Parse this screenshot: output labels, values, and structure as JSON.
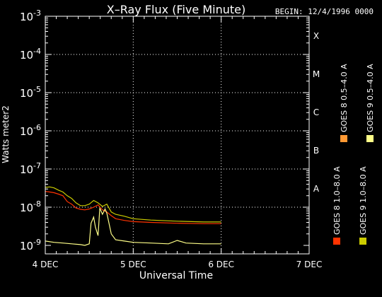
{
  "chart_data": {
    "type": "line",
    "title": "X–Ray Flux (Five Minute)",
    "begin_label": "BEGIN: 12/4/1996 0000",
    "xlabel": "Universal Time",
    "ylabel": "Watts meter2",
    "x_unit": "day",
    "xlim": [
      "1996-12-04",
      "1996-12-07"
    ],
    "x_tick_labels": [
      "4 DEC",
      "5 DEC",
      "6 DEC",
      "7 DEC"
    ],
    "yscale": "log",
    "ylim": [
      6e-10,
      0.001
    ],
    "y_ticks": [
      {
        "base": "10",
        "exp": "-9"
      },
      {
        "base": "10",
        "exp": "-8"
      },
      {
        "base": "10",
        "exp": "-7"
      },
      {
        "base": "10",
        "exp": "-6"
      },
      {
        "base": "10",
        "exp": "-5"
      },
      {
        "base": "10",
        "exp": "-4"
      },
      {
        "base": "10",
        "exp": "-3"
      }
    ],
    "flare_classes": [
      {
        "label": "A",
        "value": 1e-08
      },
      {
        "label": "B",
        "value": 1e-07
      },
      {
        "label": "C",
        "value": 1e-06
      },
      {
        "label": "M",
        "value": 1e-05
      },
      {
        "label": "X",
        "value": 0.0001
      }
    ],
    "grid": "dotted",
    "legend_position": "right, vertical",
    "legend": [
      {
        "label": "GOES 8  1.0–8.0 A",
        "color": "#ff3300"
      },
      {
        "label": "GOES 8  0.5–4.0 A",
        "color": "#ff9933"
      },
      {
        "label": "GOES 9  1.0–8.0 A",
        "color": "#cccc00"
      },
      {
        "label": "GOES 9  0.5–4.0 A",
        "color": "#ffff88"
      }
    ],
    "series": [
      {
        "name": "GOES 8  1.0–8.0 A",
        "color": "#ff3300",
        "x": [
          0,
          0.05,
          0.1,
          0.15,
          0.2,
          0.25,
          0.3,
          0.35,
          0.4,
          0.45,
          0.5,
          0.55,
          0.6,
          0.65,
          0.7,
          0.75,
          0.8,
          0.9,
          1.0,
          1.2,
          1.5,
          1.8,
          2.0
        ],
        "y": [
          2.6e-08,
          2.5e-08,
          2.4e-08,
          2.2e-08,
          2e-08,
          1.4e-08,
          1.2e-08,
          9.5e-09,
          8.8e-09,
          8.5e-09,
          9e-09,
          1e-08,
          1.15e-08,
          8.5e-09,
          7.5e-09,
          6e-09,
          5e-09,
          4.5e-09,
          4.2e-09,
          4e-09,
          3.8e-09,
          3.7e-09,
          3.7e-09
        ]
      },
      {
        "name": "GOES 9  1.0–8.0 A",
        "color": "#cccc00",
        "x": [
          0,
          0.05,
          0.1,
          0.15,
          0.2,
          0.25,
          0.3,
          0.35,
          0.4,
          0.45,
          0.5,
          0.55,
          0.6,
          0.65,
          0.7,
          0.75,
          0.8,
          0.9,
          1.0,
          1.2,
          1.5,
          1.8,
          2.0
        ],
        "y": [
          3.3e-08,
          3.4e-08,
          3.2e-08,
          2.8e-08,
          2.5e-08,
          2e-08,
          1.7e-08,
          1.3e-08,
          1.1e-08,
          1.1e-08,
          1.2e-08,
          1.5e-08,
          1.3e-08,
          1.05e-08,
          1.2e-08,
          7.5e-09,
          6.5e-09,
          5.8e-09,
          5e-09,
          4.6e-09,
          4.3e-09,
          4.1e-09,
          4.1e-09
        ]
      },
      {
        "name": "GOES 9  0.5–4.0 A",
        "color": "#ffff88",
        "x": [
          0,
          0.1,
          0.2,
          0.3,
          0.4,
          0.45,
          0.5,
          0.52,
          0.55,
          0.57,
          0.6,
          0.62,
          0.65,
          0.68,
          0.7,
          0.75,
          0.8,
          0.9,
          1.0,
          1.2,
          1.4,
          1.5,
          1.6,
          1.8,
          2.0
        ],
        "y": [
          1.3e-09,
          1.2e-09,
          1.15e-09,
          1.1e-09,
          1.05e-09,
          1e-09,
          1.1e-09,
          3.8e-09,
          5.5e-09,
          3e-09,
          1.8e-09,
          9.5e-09,
          6.5e-09,
          9e-09,
          7e-09,
          2e-09,
          1.4e-09,
          1.3e-09,
          1.2e-09,
          1.15e-09,
          1.1e-09,
          1.35e-09,
          1.15e-09,
          1.1e-09,
          1.1e-09
        ]
      }
    ]
  }
}
